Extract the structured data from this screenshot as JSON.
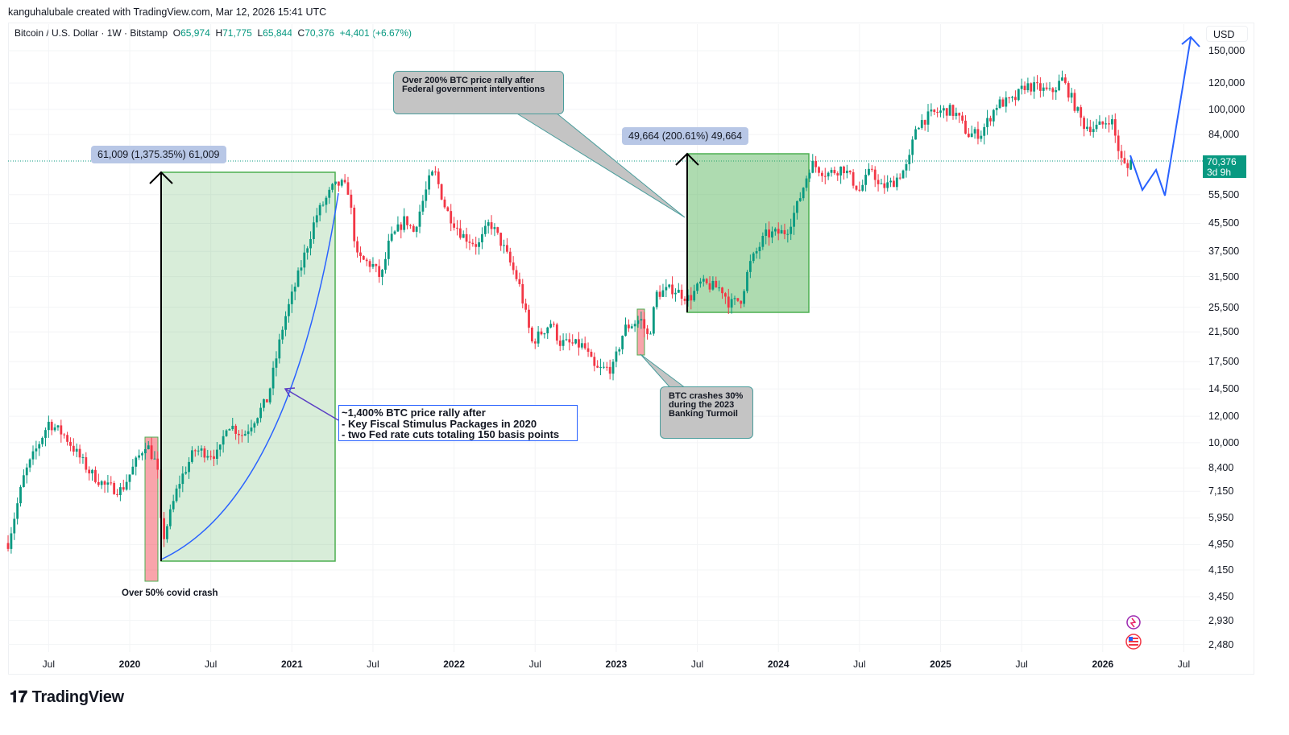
{
  "credit": "kanguhalubale created with TradingView.com, Mar 12, 2026 15:41 UTC",
  "legend": {
    "symbol": "Bitcoin / U.S. Dollar · 1W · Bitstamp",
    "o_label": "O",
    "o": "65,974",
    "h_label": "H",
    "h": "71,775",
    "l_label": "L",
    "l": "65,844",
    "c_label": "C",
    "c": "70,376",
    "change": "+4,401 (+6.67%)"
  },
  "currency": "USD",
  "last_price": {
    "value": "70,376",
    "countdown": "3d 9h"
  },
  "colors": {
    "up": "#089981",
    "down": "#f23645",
    "accent": "#2962ff"
  },
  "annotations": {
    "measure1": "61,009 (1,375.35%) 61,009",
    "measure2": "49,664 (200.61%) 49,664",
    "callout1": "Over 200% BTC price rally after Federal government interventions",
    "callout2": "BTC crashes 30% during the 2023 Banking Turmoil",
    "bluebox": [
      "~1,400% BTC price rally after",
      "- Key Fiscal Stimulus Packages in 2020",
      "- two Fed rate cuts totaling 150 basis points"
    ],
    "covid": "Over 50% covid crash"
  },
  "logo": "TradingView",
  "chart_data": {
    "type": "candlestick",
    "title": "Bitcoin / U.S. Dollar · 1W · Bitstamp",
    "yscale": "log",
    "ylim": [
      2300,
      170000
    ],
    "yticks": [
      "150,000",
      "120,000",
      "100,000",
      "84,000",
      "55,500",
      "45,500",
      "37,500",
      "31,500",
      "25,500",
      "21,500",
      "17,500",
      "14,500",
      "12,000",
      "10,000",
      "8,400",
      "7,150",
      "5,950",
      "4,950",
      "4,150",
      "3,450",
      "2,930",
      "2,480"
    ],
    "xticks": [
      {
        "t": 2019.5,
        "label": "Jul"
      },
      {
        "t": 2020,
        "label": "2020"
      },
      {
        "t": 2020.5,
        "label": "Jul"
      },
      {
        "t": 2021,
        "label": "2021"
      },
      {
        "t": 2021.5,
        "label": "Jul"
      },
      {
        "t": 2022,
        "label": "2022"
      },
      {
        "t": 2022.5,
        "label": "Jul"
      },
      {
        "t": 2023,
        "label": "2023"
      },
      {
        "t": 2023.5,
        "label": "Jul"
      },
      {
        "t": 2024,
        "label": "2024"
      },
      {
        "t": 2024.5,
        "label": "Jul"
      },
      {
        "t": 2025,
        "label": "2025"
      },
      {
        "t": 2025.5,
        "label": "Jul"
      },
      {
        "t": 2026,
        "label": "2026"
      },
      {
        "t": 2026.5,
        "label": "Jul"
      }
    ],
    "approx_close_path": [
      [
        2019.25,
        5000
      ],
      [
        2019.35,
        8000
      ],
      [
        2019.5,
        11500
      ],
      [
        2019.6,
        10500
      ],
      [
        2019.75,
        8200
      ],
      [
        2019.85,
        7400
      ],
      [
        2019.95,
        7200
      ],
      [
        2020.1,
        10000
      ],
      [
        2020.17,
        8500
      ],
      [
        2020.2,
        5000
      ],
      [
        2020.3,
        7500
      ],
      [
        2020.4,
        9500
      ],
      [
        2020.55,
        9200
      ],
      [
        2020.6,
        11500
      ],
      [
        2020.7,
        10500
      ],
      [
        2020.85,
        13500
      ],
      [
        2020.95,
        23000
      ],
      [
        2021.05,
        33000
      ],
      [
        2021.15,
        48000
      ],
      [
        2021.25,
        58000
      ],
      [
        2021.3,
        60000
      ],
      [
        2021.35,
        57000
      ],
      [
        2021.4,
        36000
      ],
      [
        2021.5,
        34000
      ],
      [
        2021.55,
        31000
      ],
      [
        2021.6,
        40000
      ],
      [
        2021.7,
        47000
      ],
      [
        2021.75,
        43000
      ],
      [
        2021.85,
        62000
      ],
      [
        2021.88,
        65000
      ],
      [
        2021.95,
        50000
      ],
      [
        2022.05,
        42000
      ],
      [
        2022.15,
        39000
      ],
      [
        2022.22,
        46000
      ],
      [
        2022.3,
        39000
      ],
      [
        2022.4,
        30000
      ],
      [
        2022.48,
        20000
      ],
      [
        2022.6,
        23000
      ],
      [
        2022.65,
        20000
      ],
      [
        2022.8,
        19500
      ],
      [
        2022.87,
        16500
      ],
      [
        2022.98,
        16800
      ],
      [
        2023.05,
        22000
      ],
      [
        2023.15,
        23500
      ],
      [
        2023.2,
        20500
      ],
      [
        2023.25,
        28000
      ],
      [
        2023.35,
        29000
      ],
      [
        2023.45,
        27000
      ],
      [
        2023.52,
        30000
      ],
      [
        2023.65,
        29000
      ],
      [
        2023.7,
        26000
      ],
      [
        2023.77,
        27000
      ],
      [
        2023.82,
        34000
      ],
      [
        2023.92,
        42000
      ],
      [
        2024.05,
        43000
      ],
      [
        2024.12,
        52000
      ],
      [
        2024.2,
        69000
      ],
      [
        2024.3,
        64000
      ],
      [
        2024.4,
        67000
      ],
      [
        2024.5,
        57000
      ],
      [
        2024.58,
        67000
      ],
      [
        2024.62,
        58000
      ],
      [
        2024.7,
        60000
      ],
      [
        2024.8,
        68000
      ],
      [
        2024.85,
        90000
      ],
      [
        2024.95,
        97000
      ],
      [
        2025.05,
        100000
      ],
      [
        2025.1,
        96000
      ],
      [
        2025.17,
        84000
      ],
      [
        2025.25,
        85000
      ],
      [
        2025.35,
        104000
      ],
      [
        2025.45,
        106000
      ],
      [
        2025.52,
        118000
      ],
      [
        2025.6,
        116000
      ],
      [
        2025.68,
        112000
      ],
      [
        2025.75,
        123000
      ],
      [
        2025.8,
        110000
      ],
      [
        2025.88,
        90000
      ],
      [
        2025.95,
        88000
      ],
      [
        2026.0,
        90000
      ],
      [
        2026.05,
        95000
      ],
      [
        2026.09,
        78000
      ],
      [
        2026.12,
        69000
      ],
      [
        2026.16,
        66000
      ],
      [
        2026.19,
        70376
      ]
    ],
    "last": {
      "open": 65974,
      "high": 71775,
      "low": 65844,
      "close": 70376
    }
  }
}
